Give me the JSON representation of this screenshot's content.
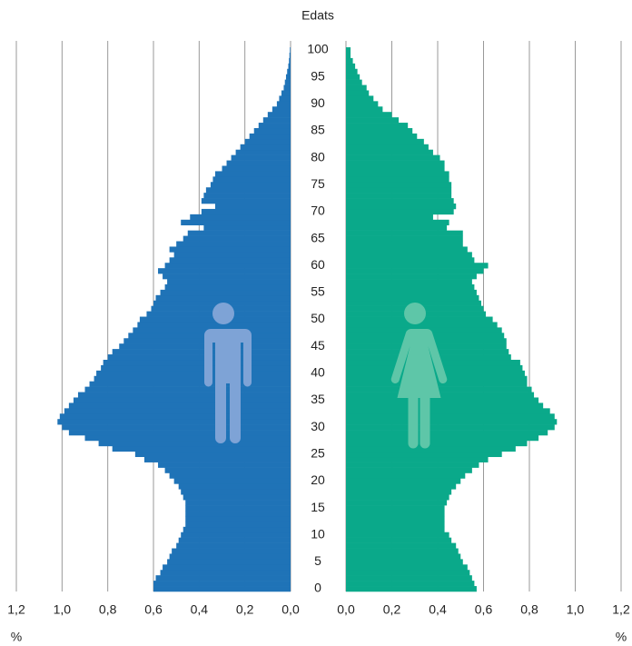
{
  "chart_data": {
    "type": "pyramid",
    "y_label": "Edats",
    "x_unit": "%",
    "categories": [
      0,
      null,
      null,
      null,
      null,
      5,
      null,
      null,
      null,
      null,
      10,
      null,
      null,
      null,
      null,
      15,
      null,
      null,
      null,
      null,
      20,
      null,
      null,
      null,
      null,
      25,
      null,
      null,
      null,
      null,
      30,
      null,
      null,
      null,
      null,
      35,
      null,
      null,
      null,
      null,
      40,
      null,
      null,
      null,
      null,
      45,
      null,
      null,
      null,
      null,
      50,
      null,
      null,
      null,
      null,
      55,
      null,
      null,
      null,
      null,
      60,
      null,
      null,
      null,
      null,
      65,
      null,
      null,
      null,
      null,
      70,
      null,
      null,
      null,
      null,
      75,
      null,
      null,
      null,
      null,
      80,
      null,
      null,
      null,
      null,
      85,
      null,
      null,
      null,
      null,
      90,
      null,
      null,
      null,
      null,
      95,
      null,
      null,
      null,
      null,
      100
    ],
    "xlim": [
      0,
      1.2
    ],
    "xticks": [
      {
        "value": 0,
        "label": "0,0"
      },
      {
        "value": 0.2,
        "label": "0,2"
      },
      {
        "value": 0.4,
        "label": "0,4"
      },
      {
        "value": 0.6,
        "label": "0,6"
      },
      {
        "value": 0.8,
        "label": "0,8"
      },
      {
        "value": 1.0,
        "label": "1,0"
      },
      {
        "value": 1.2,
        "label": "1,2"
      }
    ],
    "grid": true,
    "series": [
      {
        "side": "left",
        "color": "#1f73b7",
        "values": [
          0.6,
          0.6,
          0.59,
          0.57,
          0.56,
          0.54,
          0.53,
          0.52,
          0.5,
          0.49,
          0.48,
          0.47,
          0.46,
          0.46,
          0.46,
          0.46,
          0.46,
          0.47,
          0.48,
          0.49,
          0.51,
          0.53,
          0.55,
          0.58,
          0.64,
          0.68,
          0.78,
          0.84,
          0.9,
          0.97,
          1.0,
          1.02,
          1.01,
          0.99,
          0.97,
          0.95,
          0.93,
          0.9,
          0.88,
          0.86,
          0.85,
          0.83,
          0.82,
          0.8,
          0.78,
          0.75,
          0.73,
          0.71,
          0.69,
          0.67,
          0.66,
          0.63,
          0.61,
          0.6,
          0.59,
          0.57,
          0.55,
          0.54,
          0.56,
          0.58,
          0.55,
          0.53,
          0.51,
          0.53,
          0.5,
          0.47,
          0.45,
          0.38,
          0.48,
          0.44,
          0.39,
          0.33,
          0.39,
          0.38,
          0.37,
          0.35,
          0.34,
          0.33,
          0.3,
          0.28,
          0.26,
          0.24,
          0.22,
          0.2,
          0.18,
          0.16,
          0.14,
          0.12,
          0.1,
          0.08,
          0.06,
          0.05,
          0.04,
          0.03,
          0.025,
          0.02,
          0.015,
          0.01,
          0.007,
          0.005,
          0.003
        ]
      },
      {
        "side": "right",
        "color": "#0aa98a",
        "values": [
          0.57,
          0.56,
          0.55,
          0.54,
          0.53,
          0.51,
          0.5,
          0.49,
          0.48,
          0.46,
          0.45,
          0.43,
          0.43,
          0.43,
          0.43,
          0.43,
          0.44,
          0.45,
          0.46,
          0.48,
          0.5,
          0.52,
          0.55,
          0.58,
          0.62,
          0.68,
          0.74,
          0.79,
          0.84,
          0.88,
          0.91,
          0.92,
          0.91,
          0.89,
          0.86,
          0.84,
          0.82,
          0.81,
          0.79,
          0.79,
          0.78,
          0.77,
          0.76,
          0.72,
          0.71,
          0.7,
          0.7,
          0.69,
          0.68,
          0.66,
          0.64,
          0.61,
          0.6,
          0.59,
          0.58,
          0.57,
          0.56,
          0.55,
          0.57,
          0.6,
          0.62,
          0.56,
          0.55,
          0.53,
          0.51,
          0.51,
          0.51,
          0.44,
          0.45,
          0.38,
          0.47,
          0.48,
          0.47,
          0.46,
          0.46,
          0.46,
          0.45,
          0.45,
          0.43,
          0.43,
          0.41,
          0.38,
          0.36,
          0.34,
          0.31,
          0.29,
          0.27,
          0.23,
          0.2,
          0.16,
          0.14,
          0.12,
          0.1,
          0.09,
          0.07,
          0.06,
          0.05,
          0.04,
          0.03,
          0.02,
          0.02
        ]
      }
    ]
  }
}
